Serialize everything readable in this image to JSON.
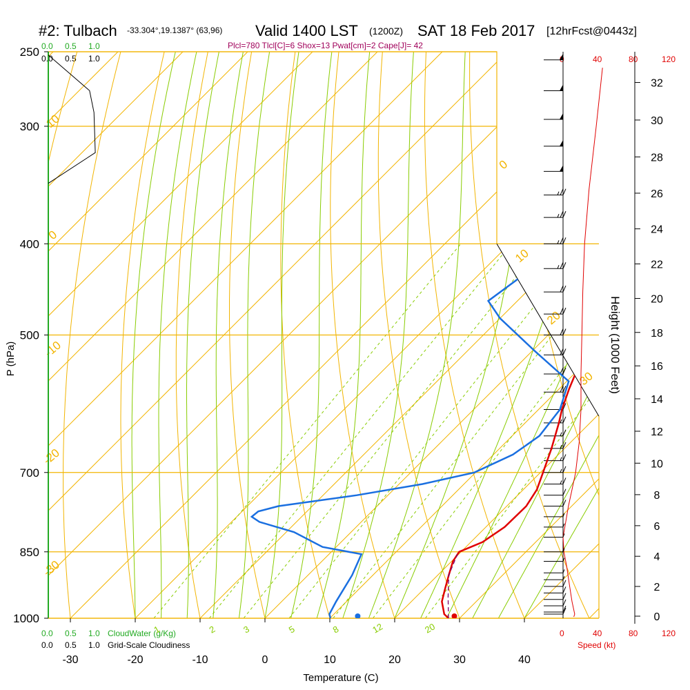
{
  "header": {
    "title": "#2: Tulbach",
    "location": "-33.304°,19.1387° (63,96)",
    "valid": "Valid 1400 LST",
    "valid_utc": "(1200Z)",
    "date": "SAT 18 Feb 2017",
    "forecast": "[12hrFcst@0443z]",
    "indices": "Plcl=780 Tlcl[C]=6 Shox=13 Pwat[cm]=2 Cape[J]= 42"
  },
  "colors": {
    "isobar": "#f2b400",
    "dry_adiabat": "#f2b400",
    "moist_adiabat": "#88cc00",
    "mixing_ratio": "#88cc00",
    "temperature": "#e00000",
    "dewpoint": "#1a6fe0",
    "parcel": "#7a0070",
    "cloudwater": "#22aa22",
    "speed": "#e00000",
    "indices_text": "#a0005a"
  },
  "left_scale": {
    "cloudwater_ticks": [
      "0.0",
      "0.5",
      "1.0"
    ],
    "cloudiness_ticks": [
      "0.0",
      "0.5",
      "1.0"
    ],
    "cloudwater_label": "CloudWater (g/Kg)",
    "cloudiness_label": "Grid-Scale Cloudiness"
  },
  "speed_scale": {
    "ticks": [
      "0",
      "40",
      "80",
      "120"
    ],
    "label": "Speed (kt)"
  },
  "chart_data": {
    "type": "skew-t",
    "xlabel": "Temperature (C)",
    "ylabel": "P (hPa)",
    "y2label": "Height (1000 Feet)",
    "x_ticks": [
      -30,
      -20,
      -10,
      0,
      10,
      20,
      30,
      40
    ],
    "xlim": [
      -34,
      47
    ],
    "pressure_levels": [
      250,
      300,
      400,
      500,
      700,
      850,
      1000
    ],
    "ylim": [
      1000,
      250
    ],
    "height_ticks": [
      0,
      2,
      4,
      6,
      8,
      10,
      12,
      14,
      16,
      18,
      20,
      22,
      24,
      26,
      28,
      30,
      32
    ],
    "dry_adiabat_labels": [
      "10",
      "0",
      "-10",
      "-20",
      "-30",
      "0",
      "10",
      "20",
      "30"
    ],
    "mixing_ratio_labels": [
      "1",
      "2",
      "3",
      "5",
      "8",
      "12",
      "20"
    ],
    "temperature_profile": [
      {
        "p": 1000,
        "t": 28.3
      },
      {
        "p": 990,
        "t": 27.0
      },
      {
        "p": 960,
        "t": 24.7
      },
      {
        "p": 930,
        "t": 23.2
      },
      {
        "p": 900,
        "t": 21.7
      },
      {
        "p": 870,
        "t": 20.2
      },
      {
        "p": 850,
        "t": 19.7
      },
      {
        "p": 830,
        "t": 21.8
      },
      {
        "p": 800,
        "t": 22.9
      },
      {
        "p": 760,
        "t": 23.0
      },
      {
        "p": 730,
        "t": 22.1
      },
      {
        "p": 700,
        "t": 20.4
      },
      {
        "p": 660,
        "t": 18.0
      },
      {
        "p": 620,
        "t": 15.2
      },
      {
        "p": 600,
        "t": 13.6
      },
      {
        "p": 570,
        "t": 11.5
      },
      {
        "p": 550,
        "t": 10.2
      },
      {
        "p": 500,
        "t": 7.3
      },
      {
        "p": 470,
        "t": 5.3
      },
      {
        "p": 440,
        "t": 3.2
      },
      {
        "p": 400,
        "t": 0.2
      },
      {
        "p": 370,
        "t": -2.1
      },
      {
        "p": 340,
        "t": -4.8
      },
      {
        "p": 320,
        "t": -6.6
      },
      {
        "p": 300,
        "t": -8.8
      },
      {
        "p": 280,
        "t": -11.3
      },
      {
        "p": 260,
        "t": -14.6
      }
    ],
    "dewpoint_profile": [
      {
        "p": 1000,
        "t": 10.1
      },
      {
        "p": 990,
        "t": 9.3
      },
      {
        "p": 960,
        "t": 8.4
      },
      {
        "p": 900,
        "t": 6.8
      },
      {
        "p": 855,
        "t": 5.0
      },
      {
        "p": 840,
        "t": -2.1
      },
      {
        "p": 810,
        "t": -8.8
      },
      {
        "p": 790,
        "t": -15.7
      },
      {
        "p": 780,
        "t": -17.7
      },
      {
        "p": 770,
        "t": -17.5
      },
      {
        "p": 760,
        "t": -15.2
      },
      {
        "p": 740,
        "t": -4.8
      },
      {
        "p": 720,
        "t": 3.6
      },
      {
        "p": 700,
        "t": 9.8
      },
      {
        "p": 670,
        "t": 13.0
      },
      {
        "p": 640,
        "t": 14.2
      },
      {
        "p": 600,
        "t": 13.3
      },
      {
        "p": 560,
        "t": 10.3
      },
      {
        "p": 520,
        "t": 0.4
      },
      {
        "p": 480,
        "t": -10.0
      },
      {
        "p": 460,
        "t": -14.5
      },
      {
        "p": 430,
        "t": -13.0
      },
      {
        "p": 400,
        "t": -8.0
      },
      {
        "p": 370,
        "t": -2.3
      },
      {
        "p": 350,
        "t": -0.3
      },
      {
        "p": 340,
        "t": -0.9
      },
      {
        "p": 320,
        "t": -2.9
      },
      {
        "p": 300,
        "t": -5.5
      },
      {
        "p": 280,
        "t": -8.8
      },
      {
        "p": 260,
        "t": -12.0
      }
    ],
    "parcel_profile": [
      {
        "p": 1000,
        "t": 28.3
      },
      {
        "p": 950,
        "t": 25.0
      },
      {
        "p": 900,
        "t": 21.7
      },
      {
        "p": 855,
        "t": 19.8
      }
    ],
    "surface_temperature": 29.2,
    "surface_dewpoint": 14.3,
    "speed_profile": [
      {
        "p": 1000,
        "spd": 12
      },
      {
        "p": 990,
        "spd": 13
      },
      {
        "p": 960,
        "spd": 10
      },
      {
        "p": 920,
        "spd": 7
      },
      {
        "p": 880,
        "spd": 4
      },
      {
        "p": 850,
        "spd": 1
      },
      {
        "p": 820,
        "spd": 0
      },
      {
        "p": 790,
        "spd": 3
      },
      {
        "p": 760,
        "spd": 6
      },
      {
        "p": 730,
        "spd": 10
      },
      {
        "p": 700,
        "spd": 14
      },
      {
        "p": 650,
        "spd": 18
      },
      {
        "p": 600,
        "spd": 20
      },
      {
        "p": 550,
        "spd": 20
      },
      {
        "p": 500,
        "spd": 21
      },
      {
        "p": 450,
        "spd": 22
      },
      {
        "p": 400,
        "spd": 24
      },
      {
        "p": 350,
        "spd": 29
      },
      {
        "p": 300,
        "spd": 37
      },
      {
        "p": 260,
        "spd": 44
      }
    ],
    "wind_barbs": [
      {
        "p": 1000,
        "spd": 10
      },
      {
        "p": 985,
        "spd": 10
      },
      {
        "p": 970,
        "spd": 10
      },
      {
        "p": 955,
        "spd": 10
      },
      {
        "p": 940,
        "spd": 10
      },
      {
        "p": 925,
        "spd": 10
      },
      {
        "p": 910,
        "spd": 5
      },
      {
        "p": 895,
        "spd": 5
      },
      {
        "p": 870,
        "spd": 5
      },
      {
        "p": 850,
        "spd": 5
      },
      {
        "p": 820,
        "spd": 5
      },
      {
        "p": 800,
        "spd": 5
      },
      {
        "p": 780,
        "spd": 5
      },
      {
        "p": 760,
        "spd": 10
      },
      {
        "p": 740,
        "spd": 10
      },
      {
        "p": 720,
        "spd": 15
      },
      {
        "p": 700,
        "spd": 15
      },
      {
        "p": 680,
        "spd": 15
      },
      {
        "p": 660,
        "spd": 15
      },
      {
        "p": 640,
        "spd": 15
      },
      {
        "p": 620,
        "spd": 15
      },
      {
        "p": 600,
        "spd": 15
      },
      {
        "p": 575,
        "spd": 20
      },
      {
        "p": 550,
        "spd": 20
      },
      {
        "p": 525,
        "spd": 20
      },
      {
        "p": 500,
        "spd": 20
      },
      {
        "p": 475,
        "spd": 20
      },
      {
        "p": 450,
        "spd": 20
      },
      {
        "p": 425,
        "spd": 25
      },
      {
        "p": 400,
        "spd": 25
      },
      {
        "p": 375,
        "spd": 25
      },
      {
        "p": 355,
        "spd": 25
      },
      {
        "p": 335,
        "spd": 50
      },
      {
        "p": 315,
        "spd": 50
      },
      {
        "p": 295,
        "spd": 50
      },
      {
        "p": 275,
        "spd": 50
      },
      {
        "p": 255,
        "spd": 50
      }
    ],
    "cloud_profile": [
      {
        "p": 252,
        "v": 0.0
      },
      {
        "p": 275,
        "v": 0.65
      },
      {
        "p": 290,
        "v": 0.72
      },
      {
        "p": 320,
        "v": 0.74
      },
      {
        "p": 345,
        "v": 0.0
      }
    ]
  }
}
